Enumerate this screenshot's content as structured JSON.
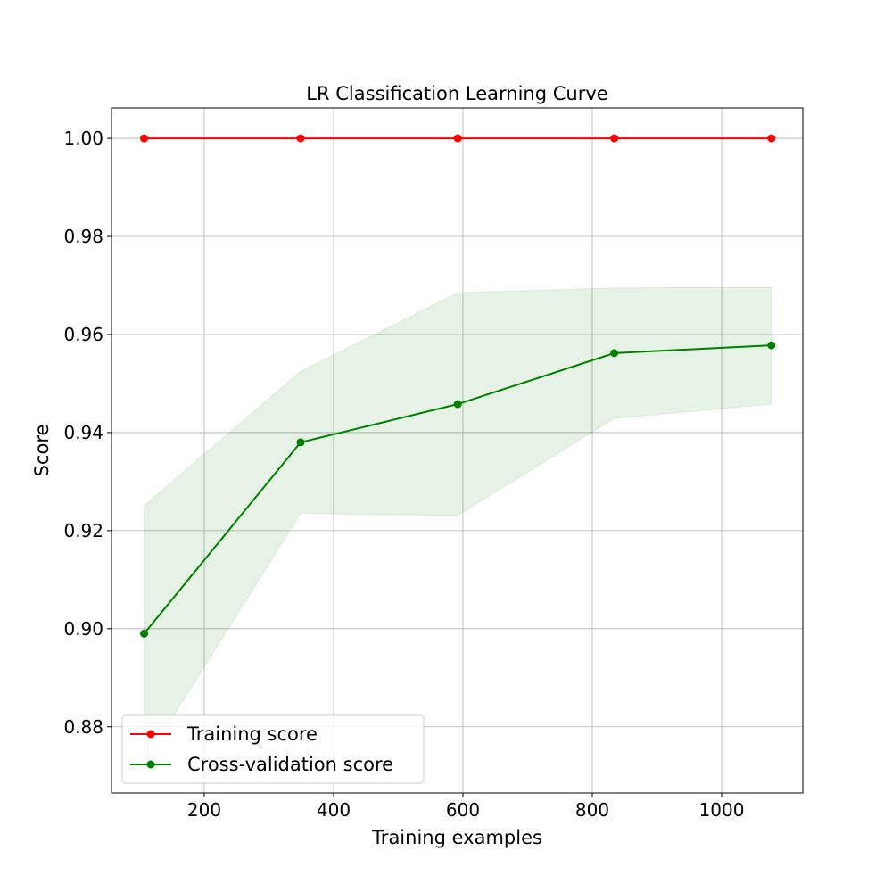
{
  "chart_data": {
    "type": "line",
    "title": "LR Classification Learning Curve",
    "xlabel": "Training examples",
    "ylabel": "Score",
    "xlim": [
      56.6,
      1125.5
    ],
    "ylim": [
      0.8665,
      1.0062
    ],
    "xticks": [
      200,
      400,
      600,
      800,
      1000
    ],
    "xtick_labels": [
      "200",
      "400",
      "600",
      "800",
      "1000"
    ],
    "yticks": [
      0.88,
      0.9,
      0.92,
      0.94,
      0.96,
      0.98,
      1.0
    ],
    "ytick_labels": [
      "0.88",
      "0.90",
      "0.92",
      "0.94",
      "0.96",
      "0.98",
      "1.00"
    ],
    "grid": true,
    "legend_position": "lower-left",
    "x": [
      107,
      349,
      592,
      834,
      1077
    ],
    "series": [
      {
        "name": "Training score",
        "color": "#ff0000",
        "values": [
          1.0,
          1.0,
          1.0,
          1.0,
          1.0
        ],
        "band_lower": [
          1.0,
          1.0,
          1.0,
          1.0,
          1.0
        ],
        "band_upper": [
          1.0,
          1.0,
          1.0,
          1.0,
          1.0
        ]
      },
      {
        "name": "Cross-validation score",
        "color": "#008000",
        "values": [
          0.899,
          0.938,
          0.9458,
          0.9562,
          0.9578
        ],
        "band_lower": [
          0.8727,
          0.9235,
          0.9231,
          0.9429,
          0.9458
        ],
        "band_upper": [
          0.9251,
          0.9525,
          0.9685,
          0.9695,
          0.9696
        ]
      }
    ]
  }
}
